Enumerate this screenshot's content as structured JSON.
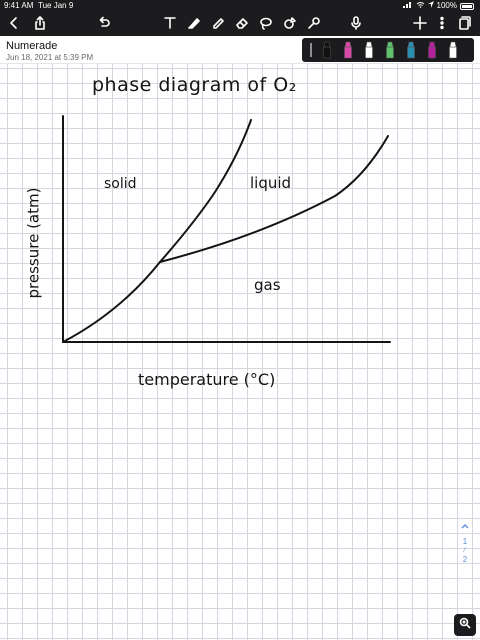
{
  "status": {
    "time": "9:41 AM",
    "date": "Tue Jan 9",
    "battery": "100%"
  },
  "toolbar": {
    "icons": [
      "back-icon",
      "share-icon",
      "undo-icon",
      "text-tool-icon",
      "pen-tool-icon",
      "highlighter-icon",
      "eraser-icon",
      "lasso-icon",
      "shapes-icon",
      "laser-pointer-icon",
      "microphone-icon",
      "add-icon",
      "more-icon",
      "pages-icon"
    ]
  },
  "document": {
    "title": "Numerade",
    "date": "Jun 18, 2021 at 5:39 PM"
  },
  "pen_palette": {
    "colors": [
      "#111111",
      "#d94aa8",
      "#ffffff",
      "#5ec26a",
      "#2a8fb0",
      "#b3219e",
      "#ffffff"
    ]
  },
  "note": {
    "title": "phase diagram of O₂",
    "ylabel": "pressure (atm)",
    "xlabel": "temperature (°C)",
    "region_solid": "solid",
    "region_liquid": "liquid",
    "region_gas": "gas"
  },
  "page_nav": {
    "current": "1",
    "separator": "⁄",
    "total": "2"
  }
}
